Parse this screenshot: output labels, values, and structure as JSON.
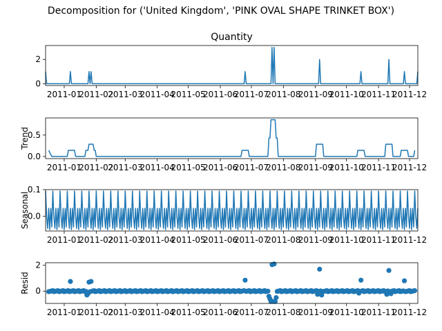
{
  "suptitle": "Decomposition for ('United Kingdom', 'PINK OVAL SHAPE TRINKET BOX')",
  "colors": {
    "series": "#1f77b4",
    "axis": "#000000",
    "background": "#ffffff"
  },
  "chart_data": [
    {
      "type": "line",
      "title": "Quantity",
      "ylabel": "",
      "xlim": [
        "2010-12-14",
        "2011-12-09"
      ],
      "ylim": [
        -0.15,
        3.15
      ],
      "yticks": [
        0,
        2
      ],
      "xtick_labels": [
        "2011-01",
        "2011-02",
        "2011-03",
        "2011-04",
        "2011-05",
        "2011-06",
        "2011-07",
        "2011-08",
        "2011-09",
        "2011-10",
        "2011-11",
        "2011-12"
      ],
      "grid": false,
      "points": [
        {
          "x": "2010-12-14",
          "y": 1
        },
        {
          "x": "2010-12-15",
          "y": 0
        },
        {
          "x": "2011-01-06",
          "y": 0
        },
        {
          "x": "2011-01-07",
          "y": 1
        },
        {
          "x": "2011-01-08",
          "y": 0
        },
        {
          "x": "2011-01-24",
          "y": 0
        },
        {
          "x": "2011-01-25",
          "y": 1
        },
        {
          "x": "2011-01-26",
          "y": 0
        },
        {
          "x": "2011-01-27",
          "y": 1
        },
        {
          "x": "2011-01-28",
          "y": 0
        },
        {
          "x": "2011-06-24",
          "y": 0
        },
        {
          "x": "2011-06-25",
          "y": 1
        },
        {
          "x": "2011-06-26",
          "y": 0
        },
        {
          "x": "2011-07-20",
          "y": 0
        },
        {
          "x": "2011-07-21",
          "y": 3
        },
        {
          "x": "2011-07-22",
          "y": 0
        },
        {
          "x": "2011-07-23",
          "y": 3
        },
        {
          "x": "2011-07-24",
          "y": 0
        },
        {
          "x": "2011-09-04",
          "y": 0
        },
        {
          "x": "2011-09-05",
          "y": 2
        },
        {
          "x": "2011-09-06",
          "y": 0
        },
        {
          "x": "2011-10-14",
          "y": 0
        },
        {
          "x": "2011-10-15",
          "y": 1
        },
        {
          "x": "2011-10-16",
          "y": 0
        },
        {
          "x": "2011-11-10",
          "y": 0
        },
        {
          "x": "2011-11-11",
          "y": 2
        },
        {
          "x": "2011-11-12",
          "y": 0
        },
        {
          "x": "2011-11-25",
          "y": 0
        },
        {
          "x": "2011-11-26",
          "y": 1
        },
        {
          "x": "2011-11-27",
          "y": 0
        },
        {
          "x": "2011-12-08",
          "y": 0
        },
        {
          "x": "2011-12-09",
          "y": 1
        }
      ]
    },
    {
      "type": "line",
      "title": "",
      "ylabel": "Trend",
      "xlim": [
        "2010-12-14",
        "2011-12-09"
      ],
      "ylim": [
        -0.05,
        0.9
      ],
      "yticks": [
        0.0,
        0.5
      ],
      "ytick_labels": [
        "0.0",
        "0.5"
      ],
      "xtick_labels": [
        "2011-01",
        "2011-02",
        "2011-03",
        "2011-04",
        "2011-05",
        "2011-06",
        "2011-07",
        "2011-08",
        "2011-09",
        "2011-10",
        "2011-11",
        "2011-12"
      ],
      "grid": false,
      "points": [
        {
          "x": "2010-12-17",
          "y": 0.143
        },
        {
          "x": "2010-12-20",
          "y": 0
        },
        {
          "x": "2011-01-04",
          "y": 0
        },
        {
          "x": "2011-01-05",
          "y": 0.143
        },
        {
          "x": "2011-01-11",
          "y": 0.143
        },
        {
          "x": "2011-01-12",
          "y": 0
        },
        {
          "x": "2011-01-21",
          "y": 0
        },
        {
          "x": "2011-01-22",
          "y": 0.143
        },
        {
          "x": "2011-01-24",
          "y": 0.143
        },
        {
          "x": "2011-01-25",
          "y": 0.286
        },
        {
          "x": "2011-01-29",
          "y": 0.286
        },
        {
          "x": "2011-01-30",
          "y": 0.143
        },
        {
          "x": "2011-01-31",
          "y": 0.143
        },
        {
          "x": "2011-02-01",
          "y": 0
        },
        {
          "x": "2011-06-21",
          "y": 0
        },
        {
          "x": "2011-06-22",
          "y": 0.143
        },
        {
          "x": "2011-06-28",
          "y": 0.143
        },
        {
          "x": "2011-06-29",
          "y": 0
        },
        {
          "x": "2011-07-17",
          "y": 0
        },
        {
          "x": "2011-07-18",
          "y": 0.429
        },
        {
          "x": "2011-07-19",
          "y": 0.429
        },
        {
          "x": "2011-07-20",
          "y": 0.857
        },
        {
          "x": "2011-07-24",
          "y": 0.857
        },
        {
          "x": "2011-07-25",
          "y": 0.429
        },
        {
          "x": "2011-07-26",
          "y": 0.429
        },
        {
          "x": "2011-07-27",
          "y": 0
        },
        {
          "x": "2011-09-01",
          "y": 0
        },
        {
          "x": "2011-09-02",
          "y": 0.286
        },
        {
          "x": "2011-09-08",
          "y": 0.286
        },
        {
          "x": "2011-09-09",
          "y": 0
        },
        {
          "x": "2011-10-11",
          "y": 0
        },
        {
          "x": "2011-10-12",
          "y": 0.143
        },
        {
          "x": "2011-10-18",
          "y": 0.143
        },
        {
          "x": "2011-10-19",
          "y": 0
        },
        {
          "x": "2011-11-07",
          "y": 0
        },
        {
          "x": "2011-11-08",
          "y": 0.286
        },
        {
          "x": "2011-11-14",
          "y": 0.286
        },
        {
          "x": "2011-11-15",
          "y": 0
        },
        {
          "x": "2011-11-22",
          "y": 0
        },
        {
          "x": "2011-11-23",
          "y": 0.143
        },
        {
          "x": "2011-11-29",
          "y": 0.143
        },
        {
          "x": "2011-11-30",
          "y": 0
        },
        {
          "x": "2011-12-05",
          "y": 0
        },
        {
          "x": "2011-12-06",
          "y": 0.143
        }
      ]
    },
    {
      "type": "line",
      "title": "",
      "ylabel": "Seasonal",
      "xlim": [
        "2010-12-14",
        "2011-12-09"
      ],
      "ylim": [
        -0.055,
        0.1
      ],
      "yticks": [
        0.0,
        0.1
      ],
      "ytick_labels": [
        "0.0",
        "0.1"
      ],
      "xtick_labels": [
        "2011-01",
        "2011-02",
        "2011-03",
        "2011-04",
        "2011-05",
        "2011-06",
        "2011-07",
        "2011-08",
        "2011-09",
        "2011-10",
        "2011-11",
        "2011-12"
      ],
      "grid": false,
      "period_days": 7,
      "weekly_pattern": [
        0.095,
        0.0,
        -0.045,
        0.03,
        -0.05,
        0.03,
        -0.04
      ]
    },
    {
      "type": "scatter",
      "title": "",
      "ylabel": "Resid",
      "xlim": [
        "2010-12-14",
        "2011-12-09"
      ],
      "ylim": [
        -0.95,
        2.2
      ],
      "yticks": [
        0,
        2
      ],
      "xtick_labels": [
        "2011-01",
        "2011-02",
        "2011-03",
        "2011-04",
        "2011-05",
        "2011-06",
        "2011-07",
        "2011-08",
        "2011-09",
        "2011-10",
        "2011-11",
        "2011-12"
      ],
      "grid": false,
      "baseline_value": 0.0,
      "outliers": [
        {
          "x": "2011-01-07",
          "y": 0.75
        },
        {
          "x": "2011-01-25",
          "y": 0.7
        },
        {
          "x": "2011-01-27",
          "y": 0.75
        },
        {
          "x": "2011-01-23",
          "y": -0.3
        },
        {
          "x": "2011-01-24",
          "y": -0.2
        },
        {
          "x": "2011-06-25",
          "y": 0.85
        },
        {
          "x": "2011-07-21",
          "y": 2.05
        },
        {
          "x": "2011-07-23",
          "y": 2.1
        },
        {
          "x": "2011-07-18",
          "y": -0.4
        },
        {
          "x": "2011-07-19",
          "y": -0.6
        },
        {
          "x": "2011-07-20",
          "y": -0.8
        },
        {
          "x": "2011-07-22",
          "y": -0.8
        },
        {
          "x": "2011-07-24",
          "y": -0.8
        },
        {
          "x": "2011-07-25",
          "y": -0.5
        },
        {
          "x": "2011-09-05",
          "y": 1.7
        },
        {
          "x": "2011-09-03",
          "y": -0.25
        },
        {
          "x": "2011-09-07",
          "y": -0.3
        },
        {
          "x": "2011-10-15",
          "y": 0.85
        },
        {
          "x": "2011-10-13",
          "y": -0.15
        },
        {
          "x": "2011-11-11",
          "y": 1.6
        },
        {
          "x": "2011-11-09",
          "y": -0.25
        },
        {
          "x": "2011-11-13",
          "y": -0.2
        },
        {
          "x": "2011-11-26",
          "y": 0.8
        }
      ]
    }
  ]
}
